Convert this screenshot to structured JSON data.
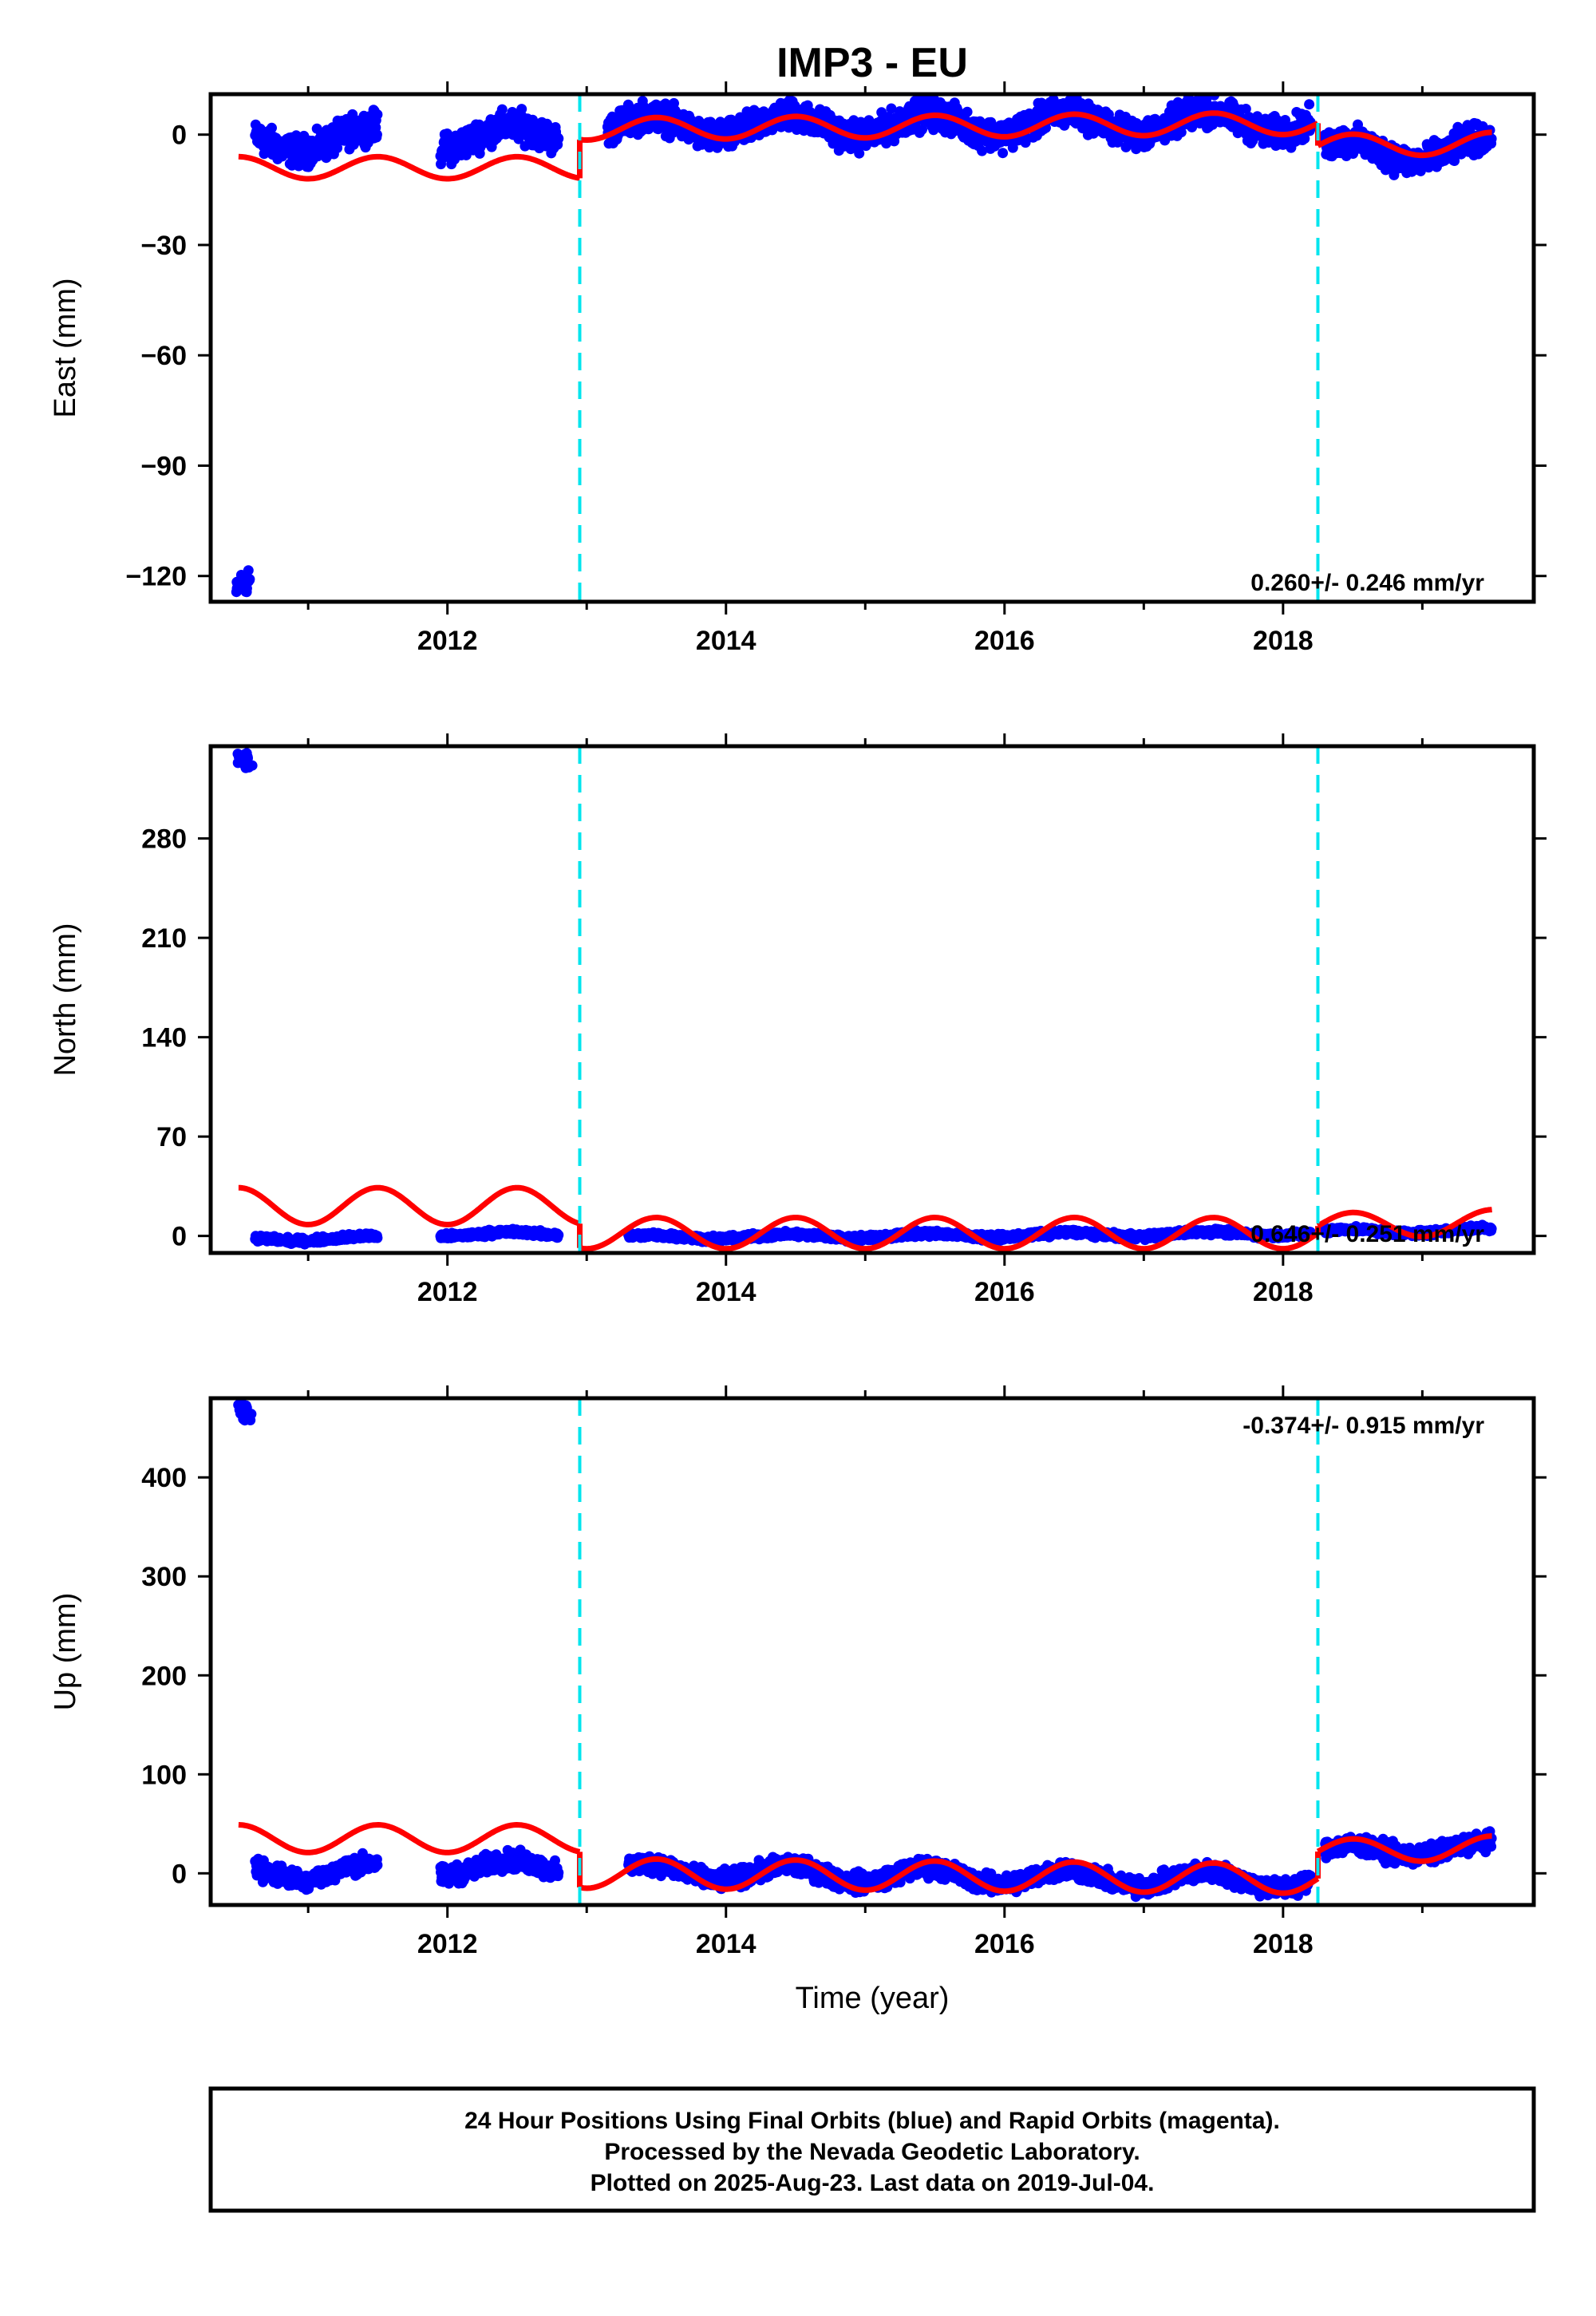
{
  "title": "IMP3 - EU",
  "xlabel": "Time (year)",
  "footer": {
    "lines": [
      "24 Hour Positions Using Final Orbits (blue) and Rapid Orbits (magenta).",
      "Processed by the Nevada Geodetic Laboratory.",
      "Plotted on 2025-Aug-23. Last data on 2019-Jul-04."
    ]
  },
  "colors": {
    "data": "#0000ff",
    "model": "#ff0000",
    "offset_line": "#00e5ee",
    "frame": "#000000"
  },
  "chart_data": [
    {
      "type": "scatter",
      "name": "east",
      "ylabel": "East (mm)",
      "xlim": [
        2010.3,
        2019.8
      ],
      "ylim": [
        -127,
        11
      ],
      "yticks": [
        0,
        -30,
        -60,
        -90,
        -120
      ],
      "xticks": [
        2012,
        2014,
        2016,
        2018
      ],
      "rate": "0.260+/- 0.246 mm/yr",
      "offsets": [
        2012.95,
        2018.25
      ],
      "outliers": {
        "x": [
          2010.52,
          2010.56
        ],
        "y": [
          -123,
          -120
        ]
      },
      "segments": [
        {
          "x0": 2010.62,
          "x1": 2011.5,
          "base": -2,
          "trend": 1.5,
          "amp": 3,
          "noise": 3
        },
        {
          "x0": 2011.95,
          "x1": 2012.8,
          "base": -1,
          "trend": 1.0,
          "amp": 3,
          "noise": 3
        },
        {
          "x0": 2013.15,
          "x1": 2018.2,
          "base": 2,
          "trend": 0.3,
          "amp": 3,
          "noise": 3
        },
        {
          "x0": 2018.3,
          "x1": 2019.5,
          "base": -5,
          "trend": 1.0,
          "amp": 3,
          "noise": 3
        }
      ],
      "model": [
        {
          "x0": 2010.5,
          "x1": 2012.95,
          "base": -9,
          "trend": 0.0,
          "amp": 3
        },
        {
          "x0": 2012.95,
          "x1": 2018.25,
          "base": 1.5,
          "trend": 0.3,
          "amp": 3
        },
        {
          "x0": 2018.25,
          "x1": 2019.5,
          "base": -3,
          "trend": 0.5,
          "amp": 3
        }
      ]
    },
    {
      "type": "scatter",
      "name": "north",
      "ylabel": "North (mm)",
      "xlim": [
        2010.3,
        2019.8
      ],
      "ylim": [
        -12,
        345
      ],
      "yticks": [
        0,
        70,
        140,
        210,
        280
      ],
      "xticks": [
        2012,
        2014,
        2016,
        2018
      ],
      "rate": "0.646+/- 0.251 mm/yr",
      "offsets": [
        2012.95,
        2018.25
      ],
      "outliers": {
        "x": [
          2010.52,
          2010.56
        ],
        "y": [
          337,
          334
        ]
      },
      "segments": [
        {
          "x0": 2010.62,
          "x1": 2011.5,
          "base": -2,
          "trend": 0.5,
          "amp": 1.5,
          "noise": 1.5
        },
        {
          "x0": 2011.95,
          "x1": 2012.8,
          "base": 1,
          "trend": 0.5,
          "amp": 1.5,
          "noise": 1.5
        },
        {
          "x0": 2013.3,
          "x1": 2018.2,
          "base": -1,
          "trend": 0.6,
          "amp": 1.5,
          "noise": 1.5
        },
        {
          "x0": 2018.3,
          "x1": 2019.5,
          "base": 3,
          "trend": 1.0,
          "amp": 1.5,
          "noise": 1.5
        }
      ],
      "model": [
        {
          "x0": 2010.5,
          "x1": 2012.95,
          "base": 21,
          "trend": 0.0,
          "amp": 13
        },
        {
          "x0": 2012.95,
          "x1": 2018.25,
          "base": 2,
          "trend": 0.0,
          "amp": 11
        },
        {
          "x0": 2018.25,
          "x1": 2019.5,
          "base": 7,
          "trend": 2.0,
          "amp": 9
        }
      ]
    },
    {
      "type": "scatter",
      "name": "up",
      "ylabel": "Up (mm)",
      "xlim": [
        2010.3,
        2019.8
      ],
      "ylim": [
        -32,
        480
      ],
      "yticks": [
        0,
        100,
        200,
        300,
        400
      ],
      "xticks": [
        2012,
        2014,
        2016,
        2018
      ],
      "rate": "-0.374+/- 0.915 mm/yr",
      "offsets": [
        2012.95,
        2018.25
      ],
      "outliers": {
        "x": [
          2010.52,
          2010.56
        ],
        "y": [
          470,
          458
        ]
      },
      "segments": [
        {
          "x0": 2010.62,
          "x1": 2011.5,
          "base": 2,
          "trend": 0.0,
          "amp": 8,
          "noise": 7
        },
        {
          "x0": 2011.95,
          "x1": 2012.8,
          "base": 5,
          "trend": 0.0,
          "amp": 8,
          "noise": 7
        },
        {
          "x0": 2013.3,
          "x1": 2018.2,
          "base": 2,
          "trend": -2.0,
          "amp": 8,
          "noise": 7
        },
        {
          "x0": 2018.3,
          "x1": 2019.5,
          "base": 22,
          "trend": 3.0,
          "amp": 6,
          "noise": 7
        }
      ],
      "model": [
        {
          "x0": 2010.5,
          "x1": 2012.95,
          "base": 35,
          "trend": 0.0,
          "amp": 14
        },
        {
          "x0": 2012.95,
          "x1": 2018.25,
          "base": 0,
          "trend": -1.0,
          "amp": 15
        },
        {
          "x0": 2018.25,
          "x1": 2019.5,
          "base": 22,
          "trend": 3.0,
          "amp": 12
        }
      ]
    }
  ]
}
